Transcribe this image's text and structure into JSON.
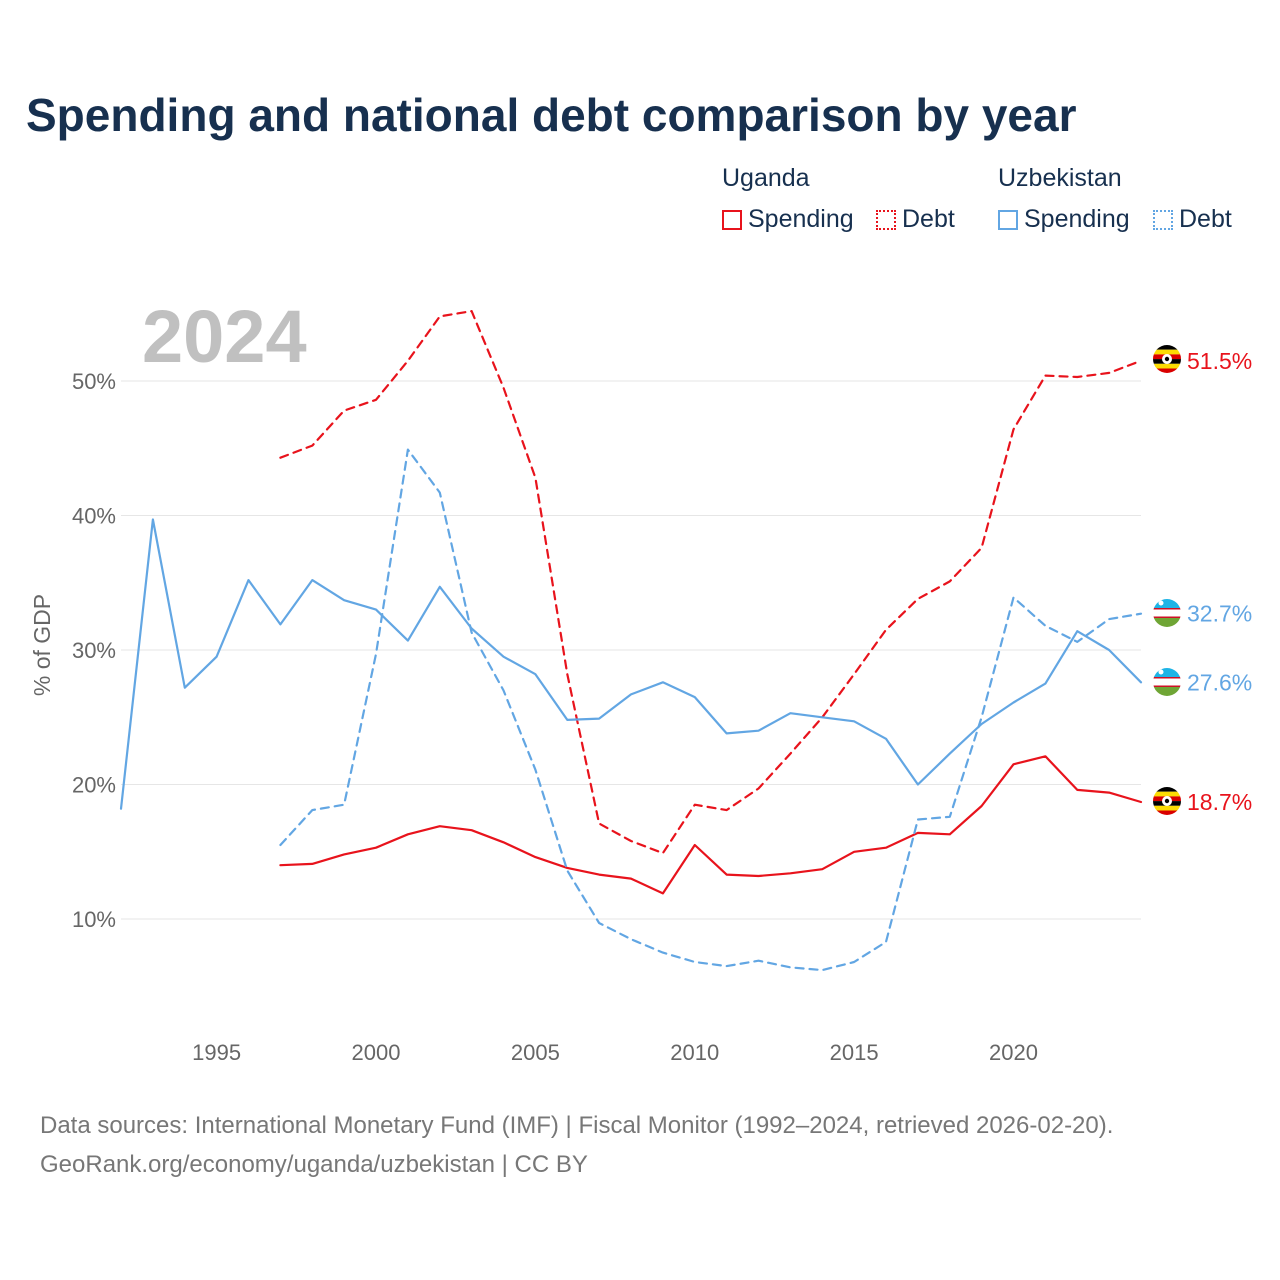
{
  "title": "Spending and national debt comparison by year",
  "legend": {
    "groups": [
      {
        "name": "Uganda",
        "items": [
          {
            "label": "Spending",
            "color": "#e8131c",
            "style": "solid"
          },
          {
            "label": "Debt",
            "color": "#e8131c",
            "style": "dotted"
          }
        ]
      },
      {
        "name": "Uzbekistan",
        "items": [
          {
            "label": "Spending",
            "color": "#62a6e3",
            "style": "solid"
          },
          {
            "label": "Debt",
            "color": "#62a6e3",
            "style": "dotted"
          }
        ]
      }
    ]
  },
  "year_watermark": "2024",
  "sources": {
    "line1": "Data sources: International Monetary Fund (IMF) | Fiscal Monitor (1992–2024, retrieved 2026-02-20).",
    "line2": "GeoRank.org/economy/uganda/uzbekistan | CC BY"
  },
  "colors": {
    "uganda": "#e8131c",
    "uzbekistan": "#62a6e3",
    "title": "#17304f",
    "axis_text": "#666666",
    "grid": "#e6e6e6",
    "watermark": "#c0c0c0"
  },
  "chart_data": {
    "type": "line",
    "title": "Spending and national debt comparison by year",
    "xlabel": "",
    "ylabel": "% of GDP",
    "xlim": [
      1992,
      2024
    ],
    "ylim": [
      2,
      56
    ],
    "x_ticks": [
      1995,
      2000,
      2005,
      2010,
      2015,
      2020
    ],
    "x_tick_labels": [
      "1995",
      "2000",
      "2005",
      "2010",
      "2015",
      "2020"
    ],
    "y_ticks": [
      10,
      20,
      30,
      40,
      50
    ],
    "y_tick_labels": [
      "10%",
      "20%",
      "30%",
      "40%",
      "50%"
    ],
    "grid": true,
    "legend_position": "top-right",
    "series": [
      {
        "name": "Uganda Spending",
        "country": "Uganda",
        "measure": "Spending",
        "color": "#e8131c",
        "dashed": false,
        "end_label": "18.7%",
        "x": [
          1997,
          1998,
          1999,
          2000,
          2001,
          2002,
          2003,
          2004,
          2005,
          2006,
          2007,
          2008,
          2009,
          2010,
          2011,
          2012,
          2013,
          2014,
          2015,
          2016,
          2017,
          2018,
          2019,
          2020,
          2021,
          2022,
          2023,
          2024
        ],
        "values": [
          14.0,
          14.1,
          14.8,
          15.3,
          16.3,
          16.9,
          16.6,
          15.7,
          14.6,
          13.8,
          13.3,
          13.0,
          11.9,
          15.5,
          13.3,
          13.2,
          13.4,
          13.7,
          15.0,
          15.3,
          16.4,
          16.3,
          18.4,
          21.5,
          22.1,
          19.6,
          19.4,
          18.7
        ]
      },
      {
        "name": "Uganda Debt",
        "country": "Uganda",
        "measure": "Debt",
        "color": "#e8131c",
        "dashed": true,
        "end_label": "51.5%",
        "x": [
          1997,
          1998,
          1999,
          2000,
          2001,
          2002,
          2003,
          2004,
          2005,
          2006,
          2007,
          2008,
          2009,
          2010,
          2011,
          2012,
          2013,
          2014,
          2015,
          2016,
          2017,
          2018,
          2019,
          2020,
          2021,
          2022,
          2023,
          2024
        ],
        "values": [
          44.3,
          45.2,
          47.8,
          48.6,
          51.5,
          54.8,
          55.2,
          49.5,
          42.8,
          28.2,
          17.1,
          15.8,
          14.9,
          18.5,
          18.1,
          19.7,
          22.3,
          25.0,
          28.2,
          31.5,
          33.8,
          35.1,
          37.6,
          46.4,
          50.4,
          50.3,
          50.6,
          51.5
        ]
      },
      {
        "name": "Uzbekistan Spending",
        "country": "Uzbekistan",
        "measure": "Spending",
        "color": "#62a6e3",
        "dashed": false,
        "end_label": "27.6%",
        "x": [
          1992,
          1993,
          1994,
          1995,
          1996,
          1997,
          1998,
          1999,
          2000,
          2001,
          2002,
          2003,
          2004,
          2005,
          2006,
          2007,
          2008,
          2009,
          2010,
          2011,
          2012,
          2013,
          2014,
          2015,
          2016,
          2017,
          2018,
          2019,
          2020,
          2021,
          2022,
          2023,
          2024
        ],
        "values": [
          18.2,
          39.7,
          27.2,
          29.5,
          35.2,
          31.9,
          35.2,
          33.7,
          33.0,
          30.7,
          34.7,
          31.6,
          29.5,
          28.2,
          24.8,
          24.9,
          26.7,
          27.6,
          26.5,
          23.8,
          24.0,
          25.3,
          25.0,
          24.7,
          23.4,
          20.0,
          22.3,
          24.5,
          26.1,
          27.5,
          31.4,
          30.0,
          27.6
        ]
      },
      {
        "name": "Uzbekistan Debt",
        "country": "Uzbekistan",
        "measure": "Debt",
        "color": "#62a6e3",
        "dashed": true,
        "end_label": "32.7%",
        "x": [
          1997,
          1998,
          1999,
          2000,
          2001,
          2002,
          2003,
          2004,
          2005,
          2006,
          2007,
          2008,
          2009,
          2010,
          2011,
          2012,
          2013,
          2014,
          2015,
          2016,
          2017,
          2018,
          2019,
          2020,
          2021,
          2022,
          2023,
          2024
        ],
        "values": [
          15.5,
          18.1,
          18.5,
          29.7,
          44.9,
          41.7,
          31.3,
          27.0,
          21.1,
          13.6,
          9.7,
          8.5,
          7.5,
          6.8,
          6.5,
          6.9,
          6.4,
          6.2,
          6.8,
          8.3,
          17.4,
          17.6,
          25.0,
          33.9,
          31.8,
          30.6,
          32.3,
          32.7
        ]
      }
    ]
  }
}
